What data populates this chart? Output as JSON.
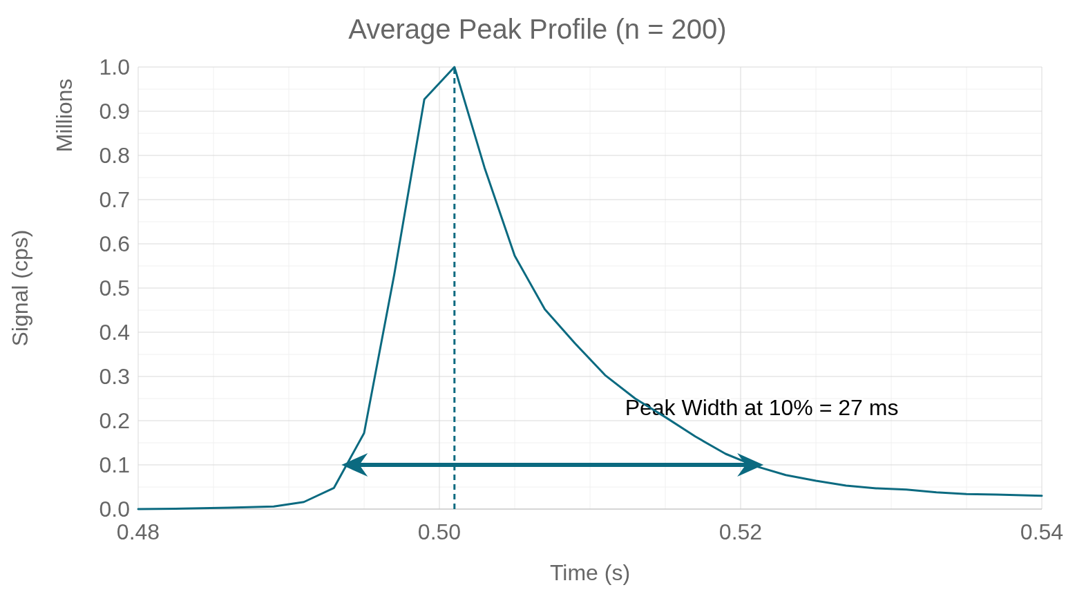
{
  "chart_data": {
    "type": "line",
    "title": "Average Peak Profile (n = 200)",
    "xlabel": "Time (s)",
    "ylabel": "Signal (cps)",
    "x": [
      0.48,
      0.483,
      0.486,
      0.489,
      0.491,
      0.493,
      0.495,
      0.497,
      0.499,
      0.501,
      0.503,
      0.505,
      0.507,
      0.509,
      0.511,
      0.513,
      0.515,
      0.517,
      0.519,
      0.521,
      0.523,
      0.525,
      0.527,
      0.529,
      0.531,
      0.533,
      0.535,
      0.537,
      0.54
    ],
    "series": [
      {
        "color": "#0b6a80",
        "values": [
          0,
          0.001,
          0.003,
          0.006,
          0.016,
          0.048,
          0.172,
          0.53,
          0.927,
          1.0,
          0.772,
          0.573,
          0.452,
          0.375,
          0.303,
          0.25,
          0.208,
          0.164,
          0.125,
          0.097,
          0.077,
          0.064,
          0.053,
          0.047,
          0.044,
          0.038,
          0.034,
          0.033,
          0.03
        ]
      }
    ],
    "xlim": [
      0.48,
      0.54
    ],
    "xticks": [
      {
        "value": 0.48,
        "label": "0.48"
      },
      {
        "value": 0.5,
        "label": "0.50"
      },
      {
        "value": 0.52,
        "label": "0.52"
      },
      {
        "value": 0.54,
        "label": "0.54"
      }
    ],
    "ylim": [
      0,
      1
    ],
    "yticks": [
      {
        "value": 0,
        "label": "0.0"
      },
      {
        "value": 0.1,
        "label": "0.1"
      },
      {
        "value": 0.2,
        "label": "0.2"
      },
      {
        "value": 0.3,
        "label": "0.3"
      },
      {
        "value": 0.4,
        "label": "0.4"
      },
      {
        "value": 0.5,
        "label": "0.5"
      },
      {
        "value": 0.6,
        "label": "0.6"
      },
      {
        "value": 0.7,
        "label": "0.7"
      },
      {
        "value": 0.8,
        "label": "0.8"
      },
      {
        "value": 0.9,
        "label": "0.9"
      },
      {
        "value": 1.0,
        "label": "1.0"
      }
    ],
    "grid": true,
    "marker": "none",
    "line_style": "solid",
    "ref_lines": [
      {
        "axis": "x",
        "value": 0.501,
        "color": "#0b6a80",
        "line_style": "dashed"
      }
    ],
    "annotations": [
      "Millions",
      "Peak Width at 10% = 27 ms"
    ]
  }
}
